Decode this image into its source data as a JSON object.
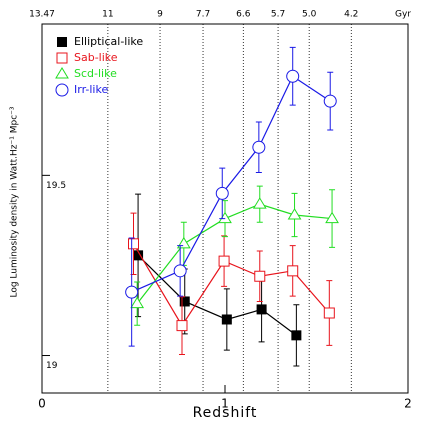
{
  "chart_data": {
    "type": "errorbar-line",
    "xlabel": "Redshift",
    "ylabel": "Log Luminosity density in Watt.Hz⁻¹ Mpc⁻³",
    "x2label": "Gyr",
    "xlim": [
      0,
      2
    ],
    "xticks": [
      0,
      1,
      2
    ],
    "ylim": [
      18.896,
      19.92
    ],
    "yticks": [
      19,
      19.5
    ],
    "x2ticks": [
      {
        "value": 0,
        "label": "13.47"
      },
      {
        "value": 0.36,
        "label": "11"
      },
      {
        "value": 0.645,
        "label": "9"
      },
      {
        "value": 0.88,
        "label": "7.7"
      },
      {
        "value": 1.1,
        "label": "6.6"
      },
      {
        "value": 1.29,
        "label": "5.7"
      },
      {
        "value": 1.46,
        "label": "5.0"
      },
      {
        "value": 1.69,
        "label": "4.2"
      }
    ],
    "legend": "upper left",
    "series": [
      {
        "name": "Elliptical-like",
        "color": "#000000",
        "marker": "square-filled",
        "x": [
          0.525,
          0.78,
          1.01,
          1.2,
          1.39
        ],
        "values": [
          19.278,
          19.15,
          19.1,
          19.128,
          19.056
        ],
        "errors": [
          0.17,
          0.09,
          0.085,
          0.09,
          0.085
        ]
      },
      {
        "name": "Sab-like",
        "color": "#e8141c",
        "marker": "square",
        "x": [
          0.5,
          0.765,
          0.995,
          1.19,
          1.37,
          1.57
        ],
        "values": [
          19.31,
          19.083,
          19.262,
          19.22,
          19.235,
          19.118
        ],
        "errors": [
          0.085,
          0.08,
          0.07,
          0.07,
          0.07,
          0.09
        ]
      },
      {
        "name": "Scd-like",
        "color": "#22dd22",
        "marker": "triangle",
        "x": [
          0.52,
          0.775,
          1.0,
          1.19,
          1.38,
          1.585
        ],
        "values": [
          19.144,
          19.31,
          19.38,
          19.42,
          19.39,
          19.38
        ],
        "errors": [
          0.06,
          0.06,
          0.05,
          0.05,
          0.06,
          0.08
        ]
      },
      {
        "name": "Irr-like",
        "color": "#1a1ae6",
        "marker": "circle",
        "x": [
          0.49,
          0.755,
          0.985,
          1.185,
          1.37,
          1.575
        ],
        "values": [
          19.176,
          19.235,
          19.45,
          19.578,
          19.775,
          19.706
        ],
        "errors": [
          0.15,
          0.07,
          0.07,
          0.07,
          0.08,
          0.08
        ]
      }
    ]
  }
}
